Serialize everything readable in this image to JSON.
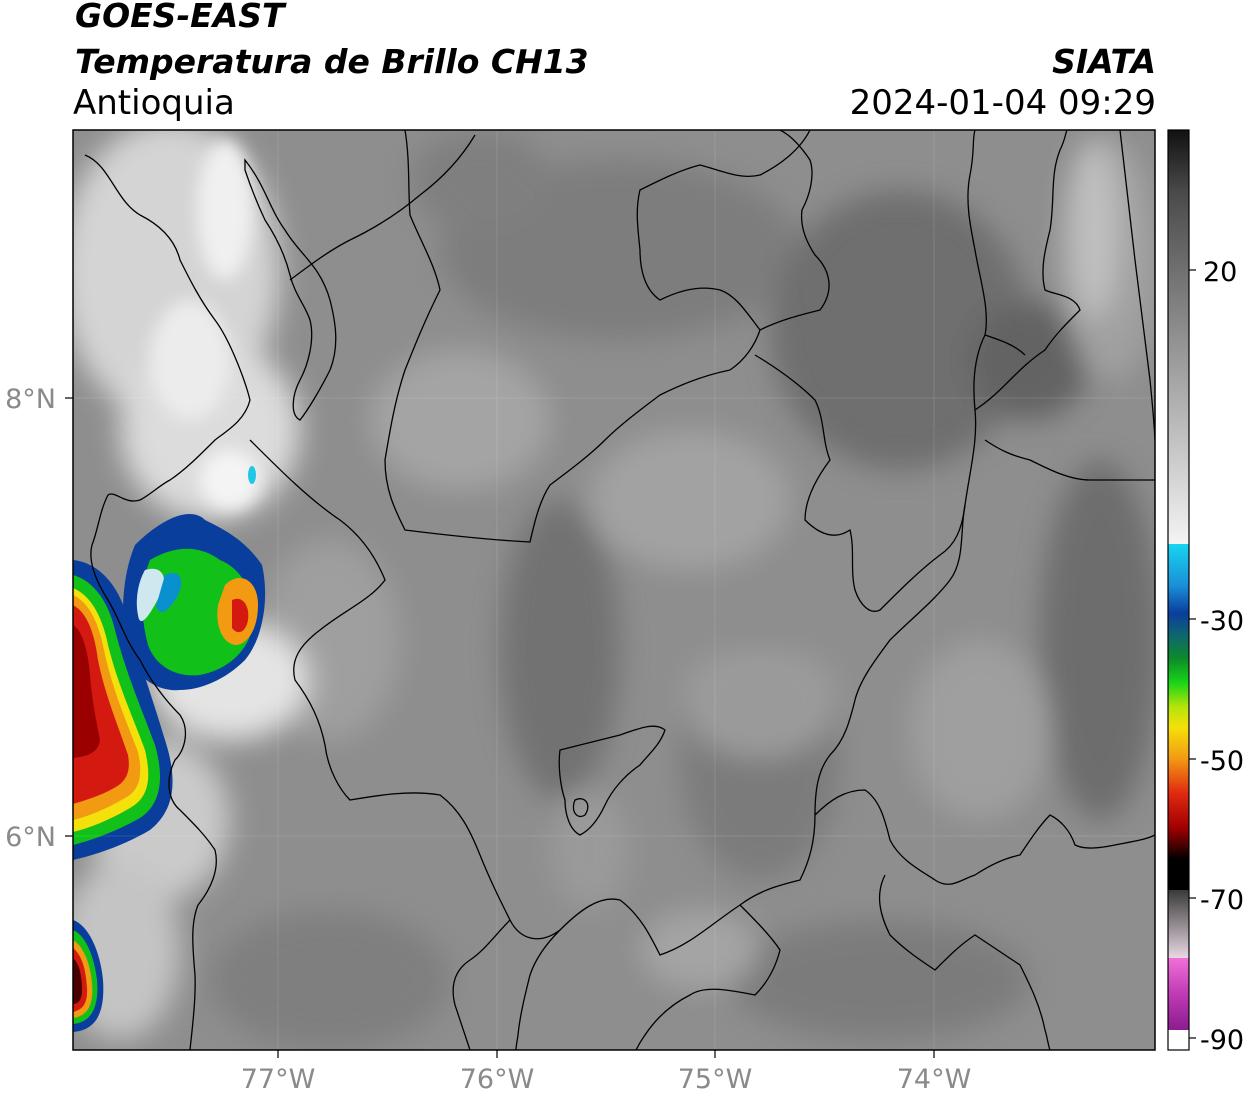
{
  "header": {
    "satellite": "GOES-EAST",
    "product": "Temperatura de Brillo CH13",
    "region": "Antioquia",
    "organization": "SIATA",
    "datetime": "2024-01-04 09:29"
  },
  "axes": {
    "lon_ticks": [
      "77°W",
      "76°W",
      "75°W",
      "74°W"
    ],
    "lat_ticks": [
      "8°N",
      "6°N"
    ]
  },
  "colorbar": {
    "labels": [
      "20",
      "-30",
      "-50",
      "-70",
      "-90"
    ],
    "colors": {
      "warm_top": "#111111",
      "warm_mid": "#8f8f8f",
      "warm_low": "#f2f2f2",
      "cyan": "#16c7e6",
      "blue": "#0a3e9c",
      "green": "#12c01a",
      "yellow": "#f4e00a",
      "orange": "#f39a13",
      "red": "#d41a10",
      "dark_red": "#6a0000",
      "black": "#000000",
      "grey_scale": "#b5b5b5",
      "magenta": "#d34fc0",
      "purple": "#8a1d8f",
      "white": "#ffffff"
    }
  },
  "map": {
    "background": "#8c8c8c",
    "boundary_color": "#000000"
  }
}
